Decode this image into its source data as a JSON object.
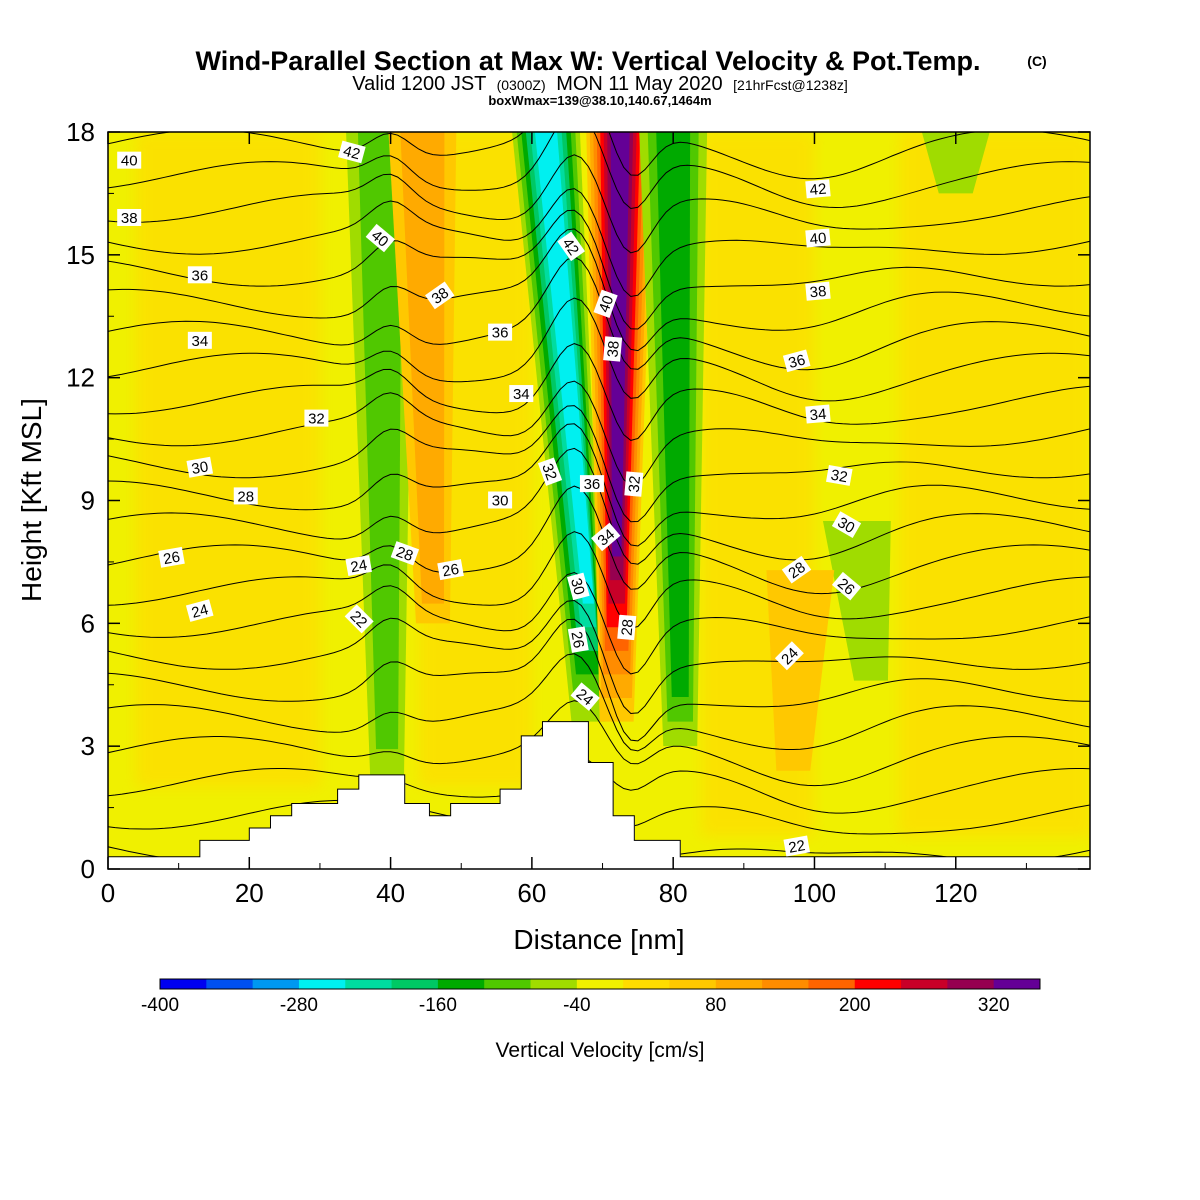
{
  "title": {
    "main": "Wind-Parallel Section at Max W: Vertical Velocity & Pot.Temp.",
    "copyright": "(C)",
    "valid_prefix": "Valid 1200 JST",
    "valid_zulu": "(0300Z)",
    "valid_date": "MON 11 May 2020",
    "forecast": "[21hrFcst@1238z]",
    "boxmax": "boxWmax=139@38.10,140.67,1464m"
  },
  "chart_data": {
    "type": "heatmap",
    "xlabel": "Distance [nm]",
    "ylabel": "Height [Kft MSL]",
    "xlim": [
      0,
      139
    ],
    "ylim": [
      0,
      18
    ],
    "x_ticks": [
      0,
      20,
      40,
      60,
      80,
      100,
      120
    ],
    "y_ticks": [
      0,
      3,
      6,
      9,
      12,
      15,
      18
    ],
    "colorbar": {
      "title": "Vertical Velocity [cm/s]",
      "tick_values": [
        -400,
        -280,
        -160,
        -40,
        80,
        200,
        320
      ],
      "tick_labels": [
        "-400",
        "-280",
        "-160",
        "-40",
        "80",
        "200",
        "320"
      ],
      "bin_edges": [
        -400,
        -360,
        -320,
        -280,
        -240,
        -200,
        -160,
        -120,
        -80,
        -40,
        0,
        40,
        80,
        120,
        160,
        200,
        240,
        280,
        320,
        360
      ],
      "colors": [
        "#0000f0",
        "#0050f0",
        "#0098f0",
        "#00f0f0",
        "#00dca0",
        "#00c864",
        "#00aa00",
        "#50c800",
        "#a0dc00",
        "#f0f000",
        "#ffdc00",
        "#ffc800",
        "#ffaa00",
        "#ff8c00",
        "#ff6400",
        "#ff0000",
        "#c80028",
        "#960050",
        "#640096"
      ],
      "background_color": "#f0f000"
    },
    "vertical_velocity_bands": [
      {
        "center_x_bottom": 39.5,
        "center_x_top": 38.5,
        "y_bottom": 2.3,
        "y_top": 18,
        "value": -100
      },
      {
        "center_x_bottom": 46,
        "center_x_top": 44.5,
        "y_bottom": 6,
        "y_top": 18,
        "value": 100
      },
      {
        "center_x_bottom": 68,
        "center_x_top": 62,
        "y_bottom": 3.6,
        "y_top": 18,
        "value": -240
      },
      {
        "center_x_bottom": 72,
        "center_x_top": 72.5,
        "y_bottom": 3.6,
        "y_top": 18,
        "value": 330
      },
      {
        "center_x_bottom": 81,
        "center_x_top": 80,
        "y_bottom": 3.0,
        "y_top": 18,
        "value": -120
      },
      {
        "center_x_bottom": 108,
        "center_x_top": 106,
        "y_bottom": 4.6,
        "y_top": 8.5,
        "value": -40
      },
      {
        "center_x_bottom": 97,
        "center_x_top": 98,
        "y_bottom": 2.4,
        "y_top": 7.3,
        "value": 60
      },
      {
        "center_x_bottom": 120,
        "center_x_top": 120,
        "y_bottom": 16.5,
        "y_top": 18,
        "value": -60
      }
    ],
    "terrain": [
      {
        "x": [
          0,
          13
        ],
        "top": 0.3
      },
      {
        "x": [
          13,
          20
        ],
        "top": 0.7
      },
      {
        "x": [
          20,
          23
        ],
        "top": 1.0
      },
      {
        "x": [
          23,
          26
        ],
        "top": 1.3
      },
      {
        "x": [
          26,
          32.5
        ],
        "top": 1.6
      },
      {
        "x": [
          32.5,
          35.5
        ],
        "top": 1.95
      },
      {
        "x": [
          35.5,
          42
        ],
        "top": 2.3
      },
      {
        "x": [
          42,
          45.5
        ],
        "top": 1.6
      },
      {
        "x": [
          45.5,
          48.5
        ],
        "top": 1.3
      },
      {
        "x": [
          48.5,
          55.5
        ],
        "top": 1.6
      },
      {
        "x": [
          55.5,
          58.5
        ],
        "top": 1.95
      },
      {
        "x": [
          58.5,
          61.5
        ],
        "top": 3.25
      },
      {
        "x": [
          61.5,
          68
        ],
        "top": 3.6
      },
      {
        "x": [
          68,
          71.5
        ],
        "top": 2.6
      },
      {
        "x": [
          71.5,
          74.5
        ],
        "top": 1.3
      },
      {
        "x": [
          74.5,
          81
        ],
        "top": 0.7
      },
      {
        "x": [
          81,
          139
        ],
        "top": 0.3
      }
    ],
    "theta_contours": {
      "interval": 1,
      "levels_min": 21,
      "levels_max": 44,
      "labels": [
        {
          "text": "40",
          "x": 3,
          "y": 17.3,
          "angle": 0
        },
        {
          "text": "42",
          "x": 34.5,
          "y": 17.5,
          "angle": 15
        },
        {
          "text": "38",
          "x": 3,
          "y": 15.9,
          "angle": 0
        },
        {
          "text": "40",
          "x": 38.5,
          "y": 15.4,
          "angle": 40
        },
        {
          "text": "42",
          "x": 65.5,
          "y": 15.2,
          "angle": 55
        },
        {
          "text": "42",
          "x": 100.5,
          "y": 16.6,
          "angle": -5
        },
        {
          "text": "40",
          "x": 100.5,
          "y": 15.4,
          "angle": -5
        },
        {
          "text": "36",
          "x": 13,
          "y": 14.5,
          "angle": 0
        },
        {
          "text": "38",
          "x": 47,
          "y": 14.0,
          "angle": -35
        },
        {
          "text": "40",
          "x": 70.5,
          "y": 13.8,
          "angle": -70
        },
        {
          "text": "38",
          "x": 100.5,
          "y": 14.1,
          "angle": -5
        },
        {
          "text": "34",
          "x": 13,
          "y": 12.9,
          "angle": 0
        },
        {
          "text": "36",
          "x": 55.5,
          "y": 13.1,
          "angle": 0
        },
        {
          "text": "38",
          "x": 71.5,
          "y": 12.7,
          "angle": -85
        },
        {
          "text": "36",
          "x": 97.5,
          "y": 12.4,
          "angle": -15
        },
        {
          "text": "34",
          "x": 58.5,
          "y": 11.6,
          "angle": 0
        },
        {
          "text": "32",
          "x": 29.5,
          "y": 11.0,
          "angle": 0
        },
        {
          "text": "34",
          "x": 100.5,
          "y": 11.1,
          "angle": -5
        },
        {
          "text": "30",
          "x": 13,
          "y": 9.8,
          "angle": -10
        },
        {
          "text": "32",
          "x": 62.5,
          "y": 9.7,
          "angle": 70
        },
        {
          "text": "36",
          "x": 68.5,
          "y": 9.4,
          "angle": 0
        },
        {
          "text": "32",
          "x": 74.5,
          "y": 9.4,
          "angle": -85
        },
        {
          "text": "32",
          "x": 103.5,
          "y": 9.6,
          "angle": 10
        },
        {
          "text": "28",
          "x": 19.5,
          "y": 9.1,
          "angle": 0
        },
        {
          "text": "30",
          "x": 55.5,
          "y": 9.0,
          "angle": 0
        },
        {
          "text": "34",
          "x": 70.5,
          "y": 8.1,
          "angle": -40
        },
        {
          "text": "30",
          "x": 104.5,
          "y": 8.4,
          "angle": 30
        },
        {
          "text": "26",
          "x": 9,
          "y": 7.6,
          "angle": -10
        },
        {
          "text": "24",
          "x": 35.5,
          "y": 7.4,
          "angle": -10
        },
        {
          "text": "28",
          "x": 42,
          "y": 7.7,
          "angle": 20
        },
        {
          "text": "26",
          "x": 48.5,
          "y": 7.3,
          "angle": -10
        },
        {
          "text": "28",
          "x": 97.5,
          "y": 7.3,
          "angle": -35
        },
        {
          "text": "30",
          "x": 66.5,
          "y": 6.9,
          "angle": 75
        },
        {
          "text": "26",
          "x": 104.5,
          "y": 6.9,
          "angle": 40
        },
        {
          "text": "24",
          "x": 13,
          "y": 6.3,
          "angle": -15
        },
        {
          "text": "22",
          "x": 35.5,
          "y": 6.1,
          "angle": 45
        },
        {
          "text": "28",
          "x": 73.5,
          "y": 5.9,
          "angle": -85
        },
        {
          "text": "26",
          "x": 66.5,
          "y": 5.6,
          "angle": 80
        },
        {
          "text": "24",
          "x": 96.5,
          "y": 5.2,
          "angle": -45
        },
        {
          "text": "24",
          "x": 67.5,
          "y": 4.2,
          "angle": 40
        },
        {
          "text": "22",
          "x": 97.5,
          "y": 0.55,
          "angle": -10
        }
      ]
    }
  }
}
